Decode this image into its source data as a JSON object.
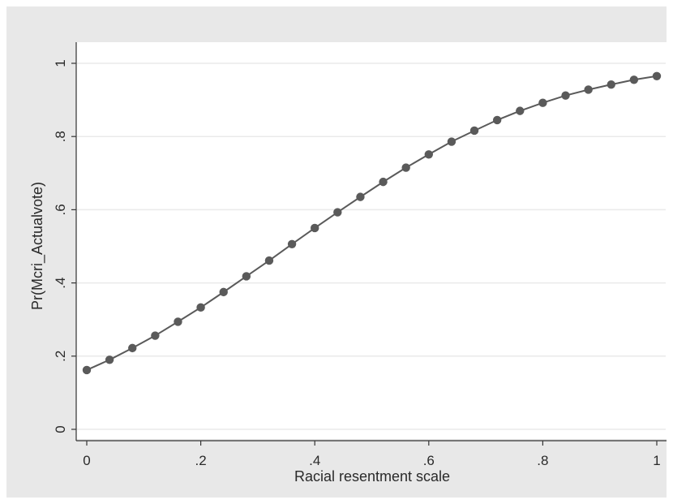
{
  "chart_data": {
    "type": "line",
    "title": "",
    "xlabel": "Racial resentment scale",
    "ylabel": "Pr(Mcri_Actualvote)",
    "xlim": [
      0,
      1
    ],
    "ylim": [
      0,
      1
    ],
    "x_ticks": [
      0,
      0.2,
      0.4,
      0.6,
      0.8,
      1
    ],
    "x_tick_labels": [
      "0",
      ".2",
      ".4",
      ".6",
      ".8",
      "1"
    ],
    "y_ticks": [
      0,
      0.2,
      0.4,
      0.6,
      0.8,
      1
    ],
    "y_tick_labels": [
      "0",
      ".2",
      ".4",
      ".6",
      ".8",
      "1"
    ],
    "grid": true,
    "legend": "none",
    "series": [
      {
        "x": [
          0,
          0.04,
          0.08,
          0.12,
          0.16,
          0.2,
          0.24,
          0.28,
          0.32,
          0.36,
          0.4,
          0.44,
          0.48,
          0.52,
          0.56,
          0.6,
          0.64,
          0.68,
          0.72,
          0.76,
          0.8,
          0.84,
          0.88,
          0.92,
          0.96,
          1.0
        ],
        "values": [
          0.162,
          0.19,
          0.222,
          0.256,
          0.294,
          0.333,
          0.375,
          0.418,
          0.461,
          0.506,
          0.55,
          0.593,
          0.635,
          0.676,
          0.715,
          0.751,
          0.786,
          0.816,
          0.845,
          0.87,
          0.892,
          0.912,
          0.928,
          0.942,
          0.955,
          0.965
        ],
        "color": "#5a5a5a"
      }
    ]
  },
  "colors": {
    "outer_background": "#e8e8e8",
    "plot_background": "#ffffff",
    "line": "#5a5a5a",
    "marker": "#5a5a5a",
    "gridline": "#eaeaea",
    "axis": "#333333"
  }
}
